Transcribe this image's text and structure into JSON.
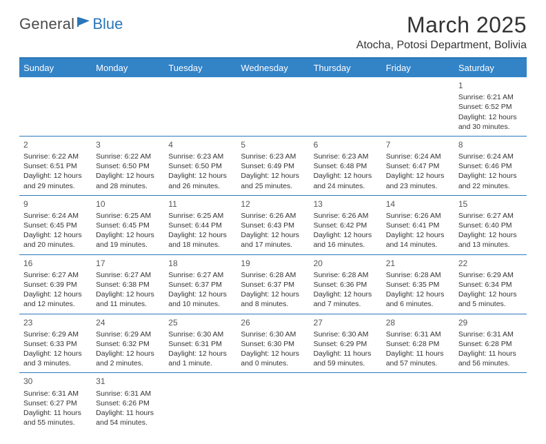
{
  "logo": {
    "text1": "General",
    "text2": "Blue",
    "icon_color": "#2976b9",
    "text1_color": "#4a4a4a",
    "text2_color": "#2976b9"
  },
  "header": {
    "month_title": "March 2025",
    "location": "Atocha, Potosi Department, Bolivia"
  },
  "styling": {
    "header_bg": "#3383c7",
    "header_border_top": "#2976b9",
    "cell_border": "#2976b9",
    "page_bg": "#ffffff",
    "text_color": "#333333",
    "daynum_color": "#555555",
    "title_fontsize": 32,
    "location_fontsize": 16,
    "header_fontsize": 13,
    "cell_fontsize": 10.5,
    "daynum_fontsize": 12
  },
  "weekdays": [
    "Sunday",
    "Monday",
    "Tuesday",
    "Wednesday",
    "Thursday",
    "Friday",
    "Saturday"
  ],
  "weeks": [
    [
      null,
      null,
      null,
      null,
      null,
      null,
      {
        "n": "1",
        "sunrise": "Sunrise: 6:21 AM",
        "sunset": "Sunset: 6:52 PM",
        "day1": "Daylight: 12 hours",
        "day2": "and 30 minutes."
      }
    ],
    [
      {
        "n": "2",
        "sunrise": "Sunrise: 6:22 AM",
        "sunset": "Sunset: 6:51 PM",
        "day1": "Daylight: 12 hours",
        "day2": "and 29 minutes."
      },
      {
        "n": "3",
        "sunrise": "Sunrise: 6:22 AM",
        "sunset": "Sunset: 6:50 PM",
        "day1": "Daylight: 12 hours",
        "day2": "and 28 minutes."
      },
      {
        "n": "4",
        "sunrise": "Sunrise: 6:23 AM",
        "sunset": "Sunset: 6:50 PM",
        "day1": "Daylight: 12 hours",
        "day2": "and 26 minutes."
      },
      {
        "n": "5",
        "sunrise": "Sunrise: 6:23 AM",
        "sunset": "Sunset: 6:49 PM",
        "day1": "Daylight: 12 hours",
        "day2": "and 25 minutes."
      },
      {
        "n": "6",
        "sunrise": "Sunrise: 6:23 AM",
        "sunset": "Sunset: 6:48 PM",
        "day1": "Daylight: 12 hours",
        "day2": "and 24 minutes."
      },
      {
        "n": "7",
        "sunrise": "Sunrise: 6:24 AM",
        "sunset": "Sunset: 6:47 PM",
        "day1": "Daylight: 12 hours",
        "day2": "and 23 minutes."
      },
      {
        "n": "8",
        "sunrise": "Sunrise: 6:24 AM",
        "sunset": "Sunset: 6:46 PM",
        "day1": "Daylight: 12 hours",
        "day2": "and 22 minutes."
      }
    ],
    [
      {
        "n": "9",
        "sunrise": "Sunrise: 6:24 AM",
        "sunset": "Sunset: 6:45 PM",
        "day1": "Daylight: 12 hours",
        "day2": "and 20 minutes."
      },
      {
        "n": "10",
        "sunrise": "Sunrise: 6:25 AM",
        "sunset": "Sunset: 6:45 PM",
        "day1": "Daylight: 12 hours",
        "day2": "and 19 minutes."
      },
      {
        "n": "11",
        "sunrise": "Sunrise: 6:25 AM",
        "sunset": "Sunset: 6:44 PM",
        "day1": "Daylight: 12 hours",
        "day2": "and 18 minutes."
      },
      {
        "n": "12",
        "sunrise": "Sunrise: 6:26 AM",
        "sunset": "Sunset: 6:43 PM",
        "day1": "Daylight: 12 hours",
        "day2": "and 17 minutes."
      },
      {
        "n": "13",
        "sunrise": "Sunrise: 6:26 AM",
        "sunset": "Sunset: 6:42 PM",
        "day1": "Daylight: 12 hours",
        "day2": "and 16 minutes."
      },
      {
        "n": "14",
        "sunrise": "Sunrise: 6:26 AM",
        "sunset": "Sunset: 6:41 PM",
        "day1": "Daylight: 12 hours",
        "day2": "and 14 minutes."
      },
      {
        "n": "15",
        "sunrise": "Sunrise: 6:27 AM",
        "sunset": "Sunset: 6:40 PM",
        "day1": "Daylight: 12 hours",
        "day2": "and 13 minutes."
      }
    ],
    [
      {
        "n": "16",
        "sunrise": "Sunrise: 6:27 AM",
        "sunset": "Sunset: 6:39 PM",
        "day1": "Daylight: 12 hours",
        "day2": "and 12 minutes."
      },
      {
        "n": "17",
        "sunrise": "Sunrise: 6:27 AM",
        "sunset": "Sunset: 6:38 PM",
        "day1": "Daylight: 12 hours",
        "day2": "and 11 minutes."
      },
      {
        "n": "18",
        "sunrise": "Sunrise: 6:27 AM",
        "sunset": "Sunset: 6:37 PM",
        "day1": "Daylight: 12 hours",
        "day2": "and 10 minutes."
      },
      {
        "n": "19",
        "sunrise": "Sunrise: 6:28 AM",
        "sunset": "Sunset: 6:37 PM",
        "day1": "Daylight: 12 hours",
        "day2": "and 8 minutes."
      },
      {
        "n": "20",
        "sunrise": "Sunrise: 6:28 AM",
        "sunset": "Sunset: 6:36 PM",
        "day1": "Daylight: 12 hours",
        "day2": "and 7 minutes."
      },
      {
        "n": "21",
        "sunrise": "Sunrise: 6:28 AM",
        "sunset": "Sunset: 6:35 PM",
        "day1": "Daylight: 12 hours",
        "day2": "and 6 minutes."
      },
      {
        "n": "22",
        "sunrise": "Sunrise: 6:29 AM",
        "sunset": "Sunset: 6:34 PM",
        "day1": "Daylight: 12 hours",
        "day2": "and 5 minutes."
      }
    ],
    [
      {
        "n": "23",
        "sunrise": "Sunrise: 6:29 AM",
        "sunset": "Sunset: 6:33 PM",
        "day1": "Daylight: 12 hours",
        "day2": "and 3 minutes."
      },
      {
        "n": "24",
        "sunrise": "Sunrise: 6:29 AM",
        "sunset": "Sunset: 6:32 PM",
        "day1": "Daylight: 12 hours",
        "day2": "and 2 minutes."
      },
      {
        "n": "25",
        "sunrise": "Sunrise: 6:30 AM",
        "sunset": "Sunset: 6:31 PM",
        "day1": "Daylight: 12 hours",
        "day2": "and 1 minute."
      },
      {
        "n": "26",
        "sunrise": "Sunrise: 6:30 AM",
        "sunset": "Sunset: 6:30 PM",
        "day1": "Daylight: 12 hours",
        "day2": "and 0 minutes."
      },
      {
        "n": "27",
        "sunrise": "Sunrise: 6:30 AM",
        "sunset": "Sunset: 6:29 PM",
        "day1": "Daylight: 11 hours",
        "day2": "and 59 minutes."
      },
      {
        "n": "28",
        "sunrise": "Sunrise: 6:31 AM",
        "sunset": "Sunset: 6:28 PM",
        "day1": "Daylight: 11 hours",
        "day2": "and 57 minutes."
      },
      {
        "n": "29",
        "sunrise": "Sunrise: 6:31 AM",
        "sunset": "Sunset: 6:28 PM",
        "day1": "Daylight: 11 hours",
        "day2": "and 56 minutes."
      }
    ],
    [
      {
        "n": "30",
        "sunrise": "Sunrise: 6:31 AM",
        "sunset": "Sunset: 6:27 PM",
        "day1": "Daylight: 11 hours",
        "day2": "and 55 minutes."
      },
      {
        "n": "31",
        "sunrise": "Sunrise: 6:31 AM",
        "sunset": "Sunset: 6:26 PM",
        "day1": "Daylight: 11 hours",
        "day2": "and 54 minutes."
      },
      null,
      null,
      null,
      null,
      null
    ]
  ]
}
